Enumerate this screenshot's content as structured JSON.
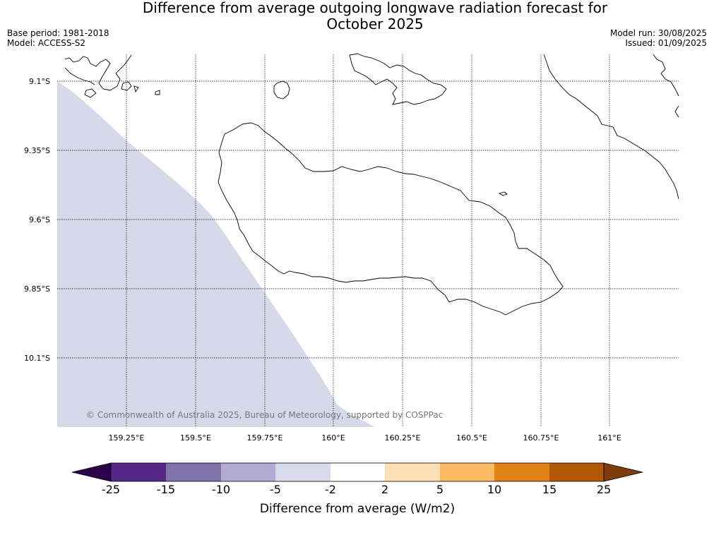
{
  "title": {
    "line1": "Difference from average outgoing longwave radiation forecast for",
    "line2": "October 2025"
  },
  "meta": {
    "base_period": "Base period: 1981-2018",
    "model": "Model: ACCESS-S2",
    "model_run": "Model run: 30/08/2025",
    "issued": "Issued: 01/09/2025"
  },
  "map": {
    "lat_labels": [
      "9.1°S",
      "9.35°S",
      "9.6°S",
      "9.85°S",
      "10.1°S"
    ],
    "lon_labels": [
      "159.25°E",
      "159.5°E",
      "159.75°E",
      "160°E",
      "160.25°E",
      "160.5°E",
      "160.75°E",
      "161°E"
    ],
    "copyright": "© Commonwealth of Australia 2025, Bureau of Meteorology, supported by COSPPac",
    "anomaly_fill_color": "#d7d8ea"
  },
  "colorbar": {
    "ticks": [
      "-25",
      "-15",
      "-10",
      "-5",
      "-2",
      "2",
      "5",
      "10",
      "15",
      "25"
    ],
    "label": "Difference from average (W/m2)",
    "colors": [
      "#2d004b",
      "#542788",
      "#8073ac",
      "#b2abd2",
      "#d8daeb",
      "#ffffff",
      "#fee0b6",
      "#fdb863",
      "#e08214",
      "#b35806",
      "#7f3b08"
    ]
  }
}
